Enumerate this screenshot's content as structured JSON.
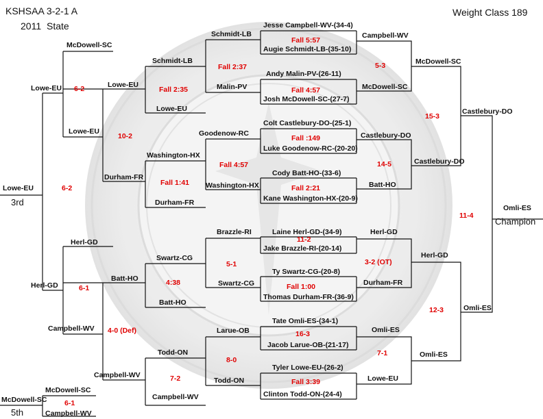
{
  "title": {
    "line1": "KSHSAA 3-2-1 A",
    "year": "2011",
    "state": "State",
    "weight_class": "Weight Class 189"
  },
  "placements": {
    "third": "3rd",
    "champion": "Champion",
    "fifth": "5th"
  },
  "seeds": {
    "s1": "Jesse Campbell-WV-(34-4)",
    "s2": "Augie Schmidt-LB-(35-10)",
    "s3": "Andy Malin-PV-(26-11)",
    "s4": "Josh McDowell-SC-(27-7)",
    "s5": "Colt Castlebury-DO-(25-1)",
    "s6": "Luke Goodenow-RC-(20-20)",
    "s7": "Cody Batt-HO-(33-6)",
    "s8": "Kane Washington-HX-(20-9)",
    "s9": "Laine Herl-GD-(34-9)",
    "s10": "Jake Brazzle-RI-(20-14)",
    "s11": "Ty Swartz-CG-(20-8)",
    "s12": "Thomas Durham-FR-(36-9)",
    "s13": "Tate Omli-ES-(34-1)",
    "s14": "Jacob Larue-OB-(21-17)",
    "s15": "Tyler Lowe-EU-(26-2)",
    "s16": "Clinton Todd-ON-(24-4)"
  },
  "first_round_results": {
    "m1": "Fall 5:57",
    "m2": "Fall 4:57",
    "m3": "Fall :149",
    "m4": "Fall 2:21",
    "m5": "11-2",
    "m6": "Fall 1:00",
    "m7": "16-3",
    "m8": "Fall 3:39"
  },
  "quarterfinals": {
    "w1": "Campbell-WV",
    "w2": "McDowell-SC",
    "w3": "Castlebury-DO",
    "w4": "Batt-HO",
    "w5": "Herl-GD",
    "w6": "Durham-FR",
    "w7": "Omli-ES",
    "w8": "Lowe-EU",
    "r1": "5-3",
    "r2": "14-5",
    "r3": "3-2 (OT)",
    "r4": "7-1"
  },
  "semifinals": {
    "w1": "McDowell-SC",
    "w2": "Castlebury-DO",
    "w3": "Herl-GD",
    "w4": "Omli-ES",
    "r1": "15-3",
    "r2": "12-3"
  },
  "finals": {
    "d1": "Castlebury-DO",
    "d2": "Omli-ES",
    "champion": "Omli-ES",
    "result": "11-4"
  },
  "consolation_r1": {
    "l1": "Schmidt-LB",
    "l2": "Malin-PV",
    "l3": "Goodenow-RC",
    "l4": "Washington-HX",
    "l5": "Brazzle-RI",
    "l6": "Swartz-CG",
    "l7": "Larue-OB",
    "l8": "Todd-ON",
    "r1": "Fall 2:37",
    "r2": "Fall 4:57",
    "r3": "5-1",
    "r4": "8-0"
  },
  "consolation_r2": {
    "a1": "Schmidt-LB",
    "a2": "Lowe-EU",
    "a3": "Washington-HX",
    "a4": "Durham-FR",
    "a5": "Swartz-CG",
    "a6": "Batt-HO",
    "a7": "Todd-ON",
    "a8": "Campbell-WV",
    "w1": "Lowe-EU",
    "w2": "Durham-FR",
    "w3": "Batt-HO",
    "w4": "Campbell-WV",
    "r1": "Fall 2:35",
    "r2": "Fall 1:41",
    "r3": "4:38",
    "r4": "7-2"
  },
  "consolation_r3": {
    "a1": "McDowell-SC",
    "a2": "Lowe-EU",
    "a3": "Herl-GD",
    "a4": "Campbell-WV",
    "r1": "6-2",
    "r2": "10-2",
    "r3": "6-1",
    "r4": "4-0 (Def)",
    "w1": "Lowe-EU",
    "w2": "Lowe-EU",
    "w3": "Herl-GD",
    "w4": "Campbell-WV"
  },
  "third_place": {
    "winner": "Lowe-EU",
    "result": "6-2"
  },
  "fifth_place": {
    "a": "McDowell-SC",
    "b": "Campbell-WV",
    "winner": "McDowell-SC",
    "result": "6-1"
  }
}
